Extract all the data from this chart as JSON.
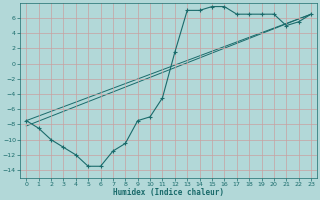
{
  "xlabel": "Humidex (Indice chaleur)",
  "background_color": "#b2d8d8",
  "grid_color": "#d4eaea",
  "line_color": "#1a6b6b",
  "xlim": [
    -0.5,
    23.5
  ],
  "ylim": [
    -15,
    8
  ],
  "yticks": [
    -14,
    -12,
    -10,
    -8,
    -6,
    -4,
    -2,
    0,
    2,
    4,
    6
  ],
  "xticks": [
    0,
    1,
    2,
    3,
    4,
    5,
    6,
    7,
    8,
    9,
    10,
    11,
    12,
    13,
    14,
    15,
    16,
    17,
    18,
    19,
    20,
    21,
    22,
    23
  ],
  "curve_x": [
    0,
    1,
    2,
    3,
    4,
    5,
    6,
    7,
    8,
    9,
    10,
    11,
    12,
    13,
    14,
    15,
    16,
    17,
    18,
    19,
    20,
    21,
    22,
    23
  ],
  "curve_y": [
    -7.5,
    -8.5,
    -10.0,
    -11.0,
    -12.0,
    -13.5,
    -13.5,
    -11.5,
    -10.5,
    -7.5,
    -7.0,
    -4.5,
    1.5,
    7.0,
    7.0,
    7.5,
    7.5,
    6.5,
    6.5,
    6.5,
    6.5,
    5.0,
    5.5,
    6.5
  ],
  "line1_x": [
    0,
    23
  ],
  "line1_y": [
    -7.5,
    6.5
  ]
}
